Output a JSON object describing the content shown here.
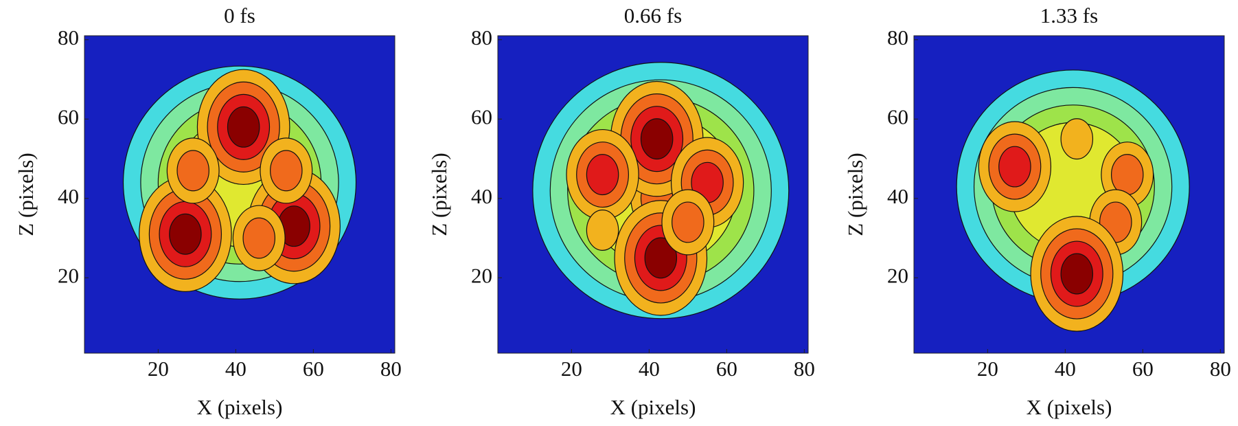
{
  "chart_data": [
    {
      "type": "contour",
      "title": "0 fs",
      "xlabel": "X (pixels)",
      "ylabel": "Z (pixels)",
      "xlim": [
        1,
        81
      ],
      "ylim": [
        1,
        81
      ],
      "xticks": [
        20,
        40,
        60,
        80
      ],
      "yticks": [
        20,
        40,
        60,
        80
      ],
      "background": "#1620c0",
      "level_colors": [
        "#45dbe0",
        "#7ee8a0",
        "#9ee34a",
        "#e0e830",
        "#f2b21e",
        "#f06a1c",
        "#e01a1a",
        "#8a0000"
      ],
      "envelope": {
        "x": 41,
        "z": 44,
        "r": 30
      },
      "peaks": [
        {
          "x": 42,
          "z": 58,
          "n": 4
        },
        {
          "x": 27,
          "z": 31,
          "n": 4
        },
        {
          "x": 55,
          "z": 33,
          "n": 4
        },
        {
          "x": 29,
          "z": 47,
          "n": 2
        },
        {
          "x": 53,
          "z": 47,
          "n": 2
        },
        {
          "x": 46,
          "z": 30,
          "n": 2
        }
      ]
    },
    {
      "type": "contour",
      "title": "0.66 fs",
      "xlabel": "X (pixels)",
      "ylabel": "Z (pixels)",
      "xlim": [
        1,
        81
      ],
      "ylim": [
        1,
        81
      ],
      "xticks": [
        20,
        40,
        60,
        80
      ],
      "yticks": [
        20,
        40,
        60,
        80
      ],
      "background": "#1620c0",
      "level_colors": [
        "#45dbe0",
        "#7ee8a0",
        "#9ee34a",
        "#e0e830",
        "#f2b21e",
        "#f06a1c",
        "#e01a1a",
        "#8a0000"
      ],
      "envelope": {
        "x": 43,
        "z": 42,
        "r": 33
      },
      "peaks": [
        {
          "x": 42,
          "z": 40,
          "n": 2
        },
        {
          "x": 42,
          "z": 55,
          "n": 4
        },
        {
          "x": 43,
          "z": 25,
          "n": 4
        },
        {
          "x": 28,
          "z": 46,
          "n": 3
        },
        {
          "x": 55,
          "z": 44,
          "n": 3
        },
        {
          "x": 50,
          "z": 34,
          "n": 2
        },
        {
          "x": 28,
          "z": 32,
          "n": 1
        }
      ]
    },
    {
      "type": "contour",
      "title": "1.33 fs",
      "xlabel": "X (pixels)",
      "ylabel": "Z (pixels)",
      "xlim": [
        1,
        81
      ],
      "ylim": [
        1,
        81
      ],
      "xticks": [
        20,
        40,
        60,
        80
      ],
      "yticks": [
        20,
        40,
        60,
        80
      ],
      "background": "#1620c0",
      "level_colors": [
        "#45dbe0",
        "#7ee8a0",
        "#9ee34a",
        "#e0e830",
        "#f2b21e",
        "#f06a1c",
        "#e01a1a",
        "#8a0000"
      ],
      "envelope": {
        "x": 42,
        "z": 43,
        "r": 30
      },
      "peaks": [
        {
          "x": 27,
          "z": 48,
          "n": 3
        },
        {
          "x": 56,
          "z": 46,
          "n": 2
        },
        {
          "x": 53,
          "z": 34,
          "n": 2
        },
        {
          "x": 43,
          "z": 21,
          "n": 4
        },
        {
          "x": 43,
          "z": 55,
          "n": 1
        }
      ]
    }
  ]
}
